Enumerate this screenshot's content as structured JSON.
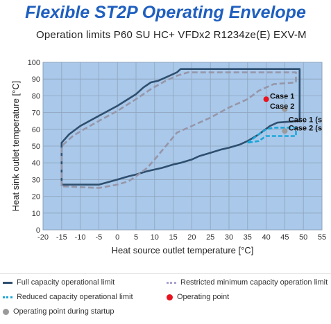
{
  "header": {
    "title": "Flexible ST2P Operating Envelope",
    "subtitle": "Operation limits P60 SU HC+ VFDx2 R1234ze(E) EXV-M"
  },
  "chart_data": {
    "type": "line",
    "xlabel": "Heat source outlet temperature [°C]",
    "ylabel": "Heat sink outlet temperature [°C]",
    "xlim": [
      -20,
      55
    ],
    "ylim": [
      0,
      100
    ],
    "xticks": [
      -20,
      -15,
      -10,
      -5,
      0,
      5,
      10,
      15,
      20,
      25,
      30,
      35,
      40,
      45,
      50,
      55
    ],
    "yticks": [
      0,
      10,
      20,
      30,
      40,
      50,
      60,
      70,
      80,
      90,
      100
    ],
    "grid": true,
    "plot_background": "#a9c8ea",
    "series": [
      {
        "name": "Full capacity operational limit",
        "color": "#2f4f6f",
        "style": "solid",
        "points": [
          [
            -15,
            27
          ],
          [
            -15,
            52
          ],
          [
            -13,
            57
          ],
          [
            -10,
            62
          ],
          [
            -5,
            68
          ],
          [
            0,
            74
          ],
          [
            5,
            81
          ],
          [
            7,
            85
          ],
          [
            9,
            88
          ],
          [
            11,
            89
          ],
          [
            12,
            90
          ],
          [
            14,
            92
          ],
          [
            16,
            94
          ],
          [
            17,
            96
          ],
          [
            49,
            96
          ],
          [
            49,
            65
          ],
          [
            43,
            64
          ],
          [
            41,
            62
          ],
          [
            38,
            57
          ],
          [
            35,
            53
          ],
          [
            33,
            51
          ],
          [
            30,
            49
          ],
          [
            28,
            48
          ],
          [
            25,
            46
          ],
          [
            22,
            44
          ],
          [
            20,
            42
          ],
          [
            17,
            40
          ],
          [
            15,
            39
          ],
          [
            12,
            37
          ],
          [
            10,
            36
          ],
          [
            8,
            35
          ],
          [
            5,
            33
          ],
          [
            3,
            32
          ],
          [
            0,
            30
          ],
          [
            -5,
            27
          ],
          [
            -15,
            27
          ]
        ]
      },
      {
        "name": "Restricted minimum capacity operation limit",
        "color": "#9696a8",
        "style": "dashed",
        "points": [
          [
            -15,
            26
          ],
          [
            -15,
            50
          ],
          [
            -12,
            56
          ],
          [
            -9,
            60
          ],
          [
            -5,
            65
          ],
          [
            0,
            71
          ],
          [
            5,
            78
          ],
          [
            9,
            84
          ],
          [
            13,
            89
          ],
          [
            16,
            92
          ],
          [
            19,
            94
          ],
          [
            48,
            94
          ],
          [
            48,
            88
          ],
          [
            42,
            87
          ],
          [
            38,
            83
          ],
          [
            35,
            78
          ],
          [
            30,
            73
          ],
          [
            25,
            67
          ],
          [
            20,
            62
          ],
          [
            16,
            58
          ],
          [
            13,
            50
          ],
          [
            10,
            42
          ],
          [
            8,
            37
          ],
          [
            5,
            32
          ],
          [
            3,
            29
          ],
          [
            0,
            27
          ],
          [
            -5,
            25
          ],
          [
            -15,
            26
          ]
        ]
      },
      {
        "name": "Reduced capacity operational limit",
        "color": "#1aa7d9",
        "style": "dashed",
        "points": [
          [
            35,
            52
          ],
          [
            38,
            57
          ],
          [
            40,
            60
          ],
          [
            42,
            61
          ],
          [
            48,
            61
          ],
          [
            48,
            56
          ],
          [
            40,
            56
          ],
          [
            38,
            53
          ],
          [
            35,
            52
          ]
        ]
      }
    ],
    "points": [
      {
        "name": "Operating point",
        "color": "#e8131e",
        "x": 40,
        "y": 78
      },
      {
        "name": "Operating point during startup",
        "color": "#9a9a9a",
        "x": 45,
        "y": 72
      },
      {
        "name": "Operating point during startup",
        "color": "#9a9a9a",
        "x": 45,
        "y": 59
      }
    ],
    "annotations": [
      {
        "text": "Case 1",
        "x": 41,
        "y": 80
      },
      {
        "text": "Case 2",
        "x": 41,
        "y": 74
      },
      {
        "text": "Case 1 (s",
        "x": 46,
        "y": 66
      },
      {
        "text": "Case 2 (s",
        "x": 46,
        "y": 61
      }
    ]
  },
  "legend": {
    "full_label": "Full capacity operational limit",
    "restricted_label": "Restricted minimum capacity operation limit",
    "reduced_label": "Reduced capacity operational limit",
    "operating_label": "Operating point",
    "startup_label": "Operating point during startup"
  }
}
